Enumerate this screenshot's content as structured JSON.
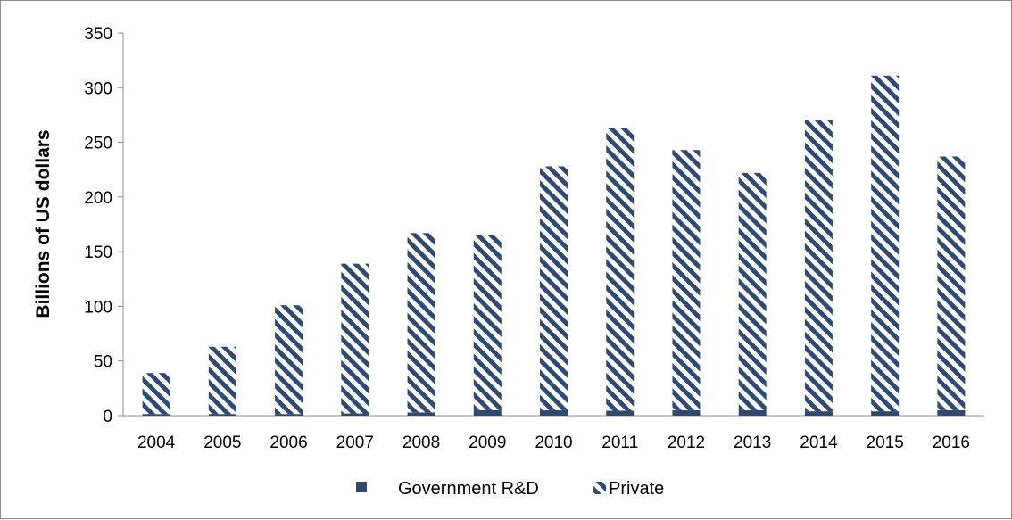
{
  "chart_data": {
    "type": "bar",
    "stacked": true,
    "categories": [
      "2004",
      "2005",
      "2006",
      "2007",
      "2008",
      "2009",
      "2010",
      "2011",
      "2012",
      "2013",
      "2014",
      "2015",
      "2016"
    ],
    "series": [
      {
        "name": "Government R&D",
        "pattern": "solid",
        "color": "#2f4a6e",
        "values": [
          1.5,
          1.5,
          1.5,
          2,
          3,
          5,
          5,
          4.5,
          5,
          5,
          4,
          4,
          5
        ]
      },
      {
        "name": "Private",
        "pattern": "diagonal-stripes",
        "color": "#2f4a6e",
        "values": [
          37.5,
          61.5,
          99.5,
          137,
          164,
          160,
          223,
          258.5,
          238,
          217,
          266,
          307,
          232
        ]
      }
    ],
    "title": "",
    "xlabel": "",
    "ylabel": "Billions of US dollars",
    "ylim": [
      0,
      350
    ],
    "yticks": [
      0,
      50,
      100,
      150,
      200,
      250,
      300,
      350
    ],
    "grid": false,
    "legend_position": "bottom"
  }
}
